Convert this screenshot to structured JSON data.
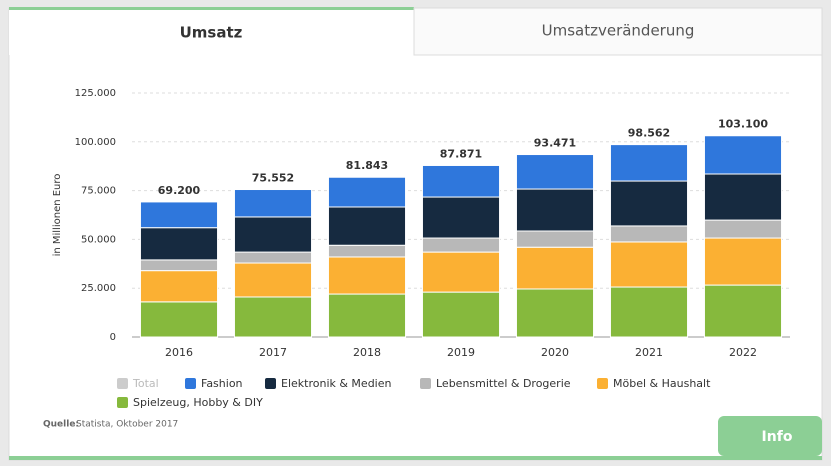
{
  "tabs": [
    "Umsatz",
    "Umsatzveränderung"
  ],
  "source_label": "Quelle:",
  "source": "Statista, Oktober 2017",
  "info": "Info",
  "chart_data": {
    "type": "stacked-bar",
    "y_label": "in Millionen Euro",
    "categories": [
      "2016",
      "2017",
      "2018",
      "2019",
      "2020",
      "2021",
      "2022"
    ],
    "ylim": [
      0,
      125000
    ],
    "yticks": [
      0,
      {
        "value": 25000,
        "label": "25.000"
      },
      {
        "value": 50000,
        "label": "50.000"
      },
      {
        "value": 75000,
        "label": "75.000"
      },
      {
        "value": 100000,
        "label": "100.000"
      },
      {
        "value": 125000,
        "label": "125.000"
      }
    ],
    "grid": true,
    "series": [
      {
        "name": "Total",
        "color": "#cccccc",
        "values": [
          69200,
          75552,
          81843,
          87871,
          93471,
          98562,
          103100
        ],
        "value_labels": [
          "69.200",
          "75.552",
          "81.843",
          "87.871",
          "93.471",
          "98.562",
          "103.100"
        ]
      },
      {
        "name": "Fashion",
        "color": "#2f77dc",
        "values": [
          13200,
          14052,
          15243,
          16171,
          17671,
          18662,
          19600
        ]
      },
      {
        "name": "Elektronik & Medien",
        "color": "#162a40",
        "values": [
          16500,
          18000,
          19600,
          21000,
          21500,
          23000,
          23600
        ]
      },
      {
        "name": "Lebensmittel & Drogerie",
        "color": "#b8b8b8",
        "values": [
          5500,
          5600,
          6000,
          7200,
          8300,
          8200,
          9200
        ]
      },
      {
        "name": "Möbel & Haushalt",
        "color": "#fbb033",
        "values": [
          16000,
          17400,
          19000,
          20500,
          21400,
          23100,
          24100
        ]
      },
      {
        "name": "Spielzeug, Hobby & DIY",
        "color": "#86b93d",
        "values": [
          18000,
          20500,
          22000,
          23000,
          24600,
          25600,
          26600
        ]
      }
    ]
  }
}
